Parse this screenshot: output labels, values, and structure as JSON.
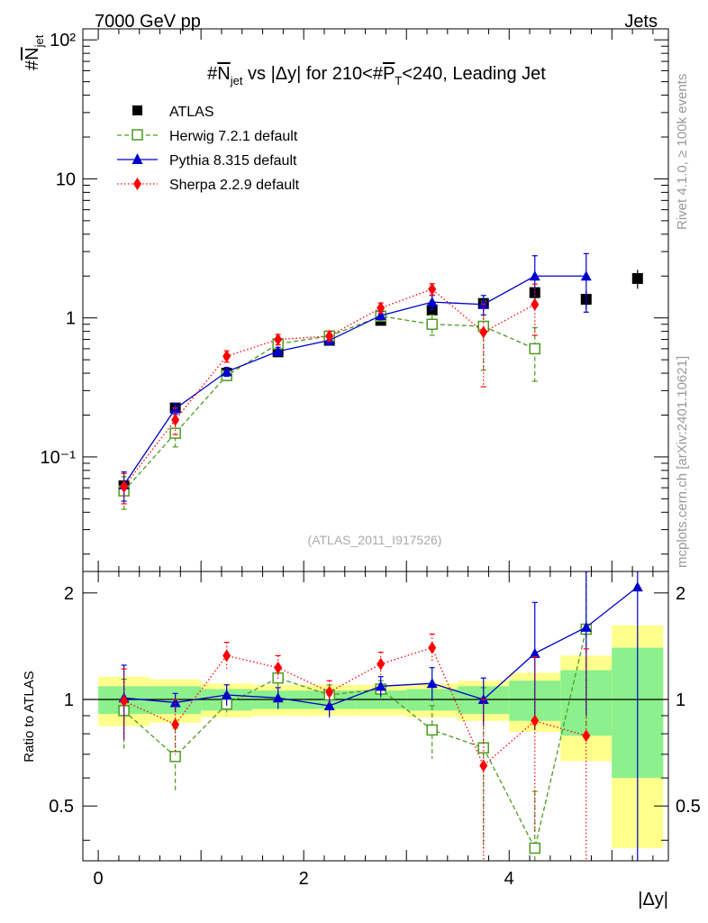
{
  "header": {
    "left": "7000 GeV pp",
    "right": "Jets",
    "side_note_top": "Rivet 4.1.0, ≥ 100k events",
    "side_note_bottom": "mcplots.cern.ch [arXiv:2401.10621]"
  },
  "chart_data": {
    "type": "line",
    "title": "#N̅jet vs |Δy| for 210<#P̅T<240, Leading Jet",
    "title_parts": {
      "a": "#",
      "b": "N",
      "b_sub": "jet",
      "c": " vs |Δy| for 210<#",
      "d": "P",
      "d_sub": "T",
      "e": "<240, Leading Jet"
    },
    "ylabel": "#N̅jet",
    "ylabel_parts": {
      "a": "#",
      "b": "N",
      "b_sub": "jet"
    },
    "xlabel": "|Δy|",
    "ratio_ylabel": "Ratio to ATLAS",
    "watermark": "(ATLAS_2011_I917526)",
    "xlim": [
      -0.15,
      5.55
    ],
    "ylim": [
      0.015,
      120
    ],
    "yscale": "log",
    "ratio_ylim": [
      0.35,
      2.3
    ],
    "x_ticks": [
      0,
      2,
      4
    ],
    "y_tick_labels": [
      "10⁻¹",
      "1",
      "10",
      "10²"
    ],
    "ratio_tick_labels": [
      "0.5",
      "1",
      "2"
    ],
    "legend_position": "top-left",
    "x_bins": [
      [
        0,
        0.5
      ],
      [
        0.5,
        1
      ],
      [
        1,
        1.5
      ],
      [
        1.5,
        2
      ],
      [
        2,
        2.5
      ],
      [
        2.5,
        3
      ],
      [
        3,
        3.5
      ],
      [
        3.5,
        4
      ],
      [
        4,
        4.5
      ],
      [
        4.5,
        5
      ],
      [
        5,
        5.5
      ]
    ],
    "x": [
      0.25,
      0.75,
      1.25,
      1.75,
      2.25,
      2.75,
      3.25,
      3.75,
      4.25,
      4.75,
      5.25
    ],
    "series": [
      {
        "name": "ATLAS",
        "color": "#000000",
        "marker": "filled-square",
        "line": "none",
        "values": [
          0.062,
          0.225,
          0.4,
          0.57,
          0.69,
          0.96,
          1.14,
          1.27,
          1.52,
          1.36,
          1.92
        ],
        "errors": [
          0.004,
          0.01,
          0.02,
          0.03,
          0.04,
          0.06,
          0.08,
          0.1,
          0.15,
          0.2,
          0.3
        ]
      },
      {
        "name": "Herwig 7.2.1 default",
        "color": "#4d9a1f",
        "marker": "open-square",
        "line": "dashed",
        "values": [
          0.057,
          0.148,
          0.385,
          0.65,
          0.74,
          1.03,
          0.9,
          0.87,
          0.6,
          null,
          null
        ],
        "errors": [
          0.015,
          0.03,
          0.03,
          0.05,
          0.05,
          0.07,
          0.15,
          0.45,
          0.25,
          null,
          null
        ]
      },
      {
        "name": "Pythia 8.315 default",
        "color": "#0000cc",
        "marker": "filled-triangle",
        "line": "solid",
        "values": [
          0.063,
          0.222,
          0.41,
          0.575,
          0.69,
          1.04,
          1.3,
          1.25,
          2.0,
          2.0,
          null
        ],
        "errors": [
          0.015,
          0.02,
          0.03,
          0.04,
          0.05,
          0.07,
          0.15,
          0.2,
          0.8,
          0.9,
          null
        ]
      },
      {
        "name": "Sherpa 2.2.9 default",
        "color": "#ff0000",
        "marker": "filled-diamond",
        "line": "dotted",
        "values": [
          0.061,
          0.185,
          0.53,
          0.7,
          0.74,
          1.18,
          1.61,
          0.79,
          1.25,
          null,
          null
        ],
        "errors": [
          0.015,
          0.04,
          0.05,
          0.06,
          0.06,
          0.1,
          0.15,
          0.47,
          0.5,
          null,
          null
        ]
      }
    ],
    "ratio_series": [
      {
        "name": "Herwig 7.2.1 default",
        "values": [
          0.93,
          0.69,
          0.97,
          1.15,
          1.03,
          1.07,
          0.82,
          0.73,
          0.38,
          1.58,
          null
        ],
        "errors": [
          0.21,
          0.14,
          0.07,
          0.08,
          0.07,
          0.06,
          0.14,
          0.35,
          0.17,
          0.75,
          null
        ]
      },
      {
        "name": "Pythia 8.315 default",
        "values": [
          1.01,
          0.98,
          1.03,
          1.01,
          0.96,
          1.09,
          1.11,
          1.0,
          1.35,
          1.6,
          2.08
        ],
        "errors": [
          0.24,
          0.06,
          0.07,
          0.07,
          0.07,
          0.07,
          0.12,
          0.15,
          0.53,
          0.7,
          1.8
        ]
      },
      {
        "name": "Sherpa 2.2.9 default",
        "values": [
          0.99,
          0.85,
          1.33,
          1.23,
          1.05,
          1.26,
          1.4,
          0.65,
          0.87,
          0.79,
          null
        ],
        "errors": [
          0.23,
          0.15,
          0.12,
          0.1,
          0.08,
          0.1,
          0.13,
          0.35,
          0.45,
          0.6,
          null
        ]
      }
    ],
    "ratio_band_stat": [
      0.09,
      0.09,
      0.07,
      0.06,
      0.06,
      0.06,
      0.07,
      0.09,
      0.13,
      0.21,
      0.4
    ],
    "ratio_band_total": [
      0.16,
      0.14,
      0.11,
      0.1,
      0.1,
      0.1,
      0.11,
      0.13,
      0.19,
      0.33,
      0.62
    ]
  }
}
